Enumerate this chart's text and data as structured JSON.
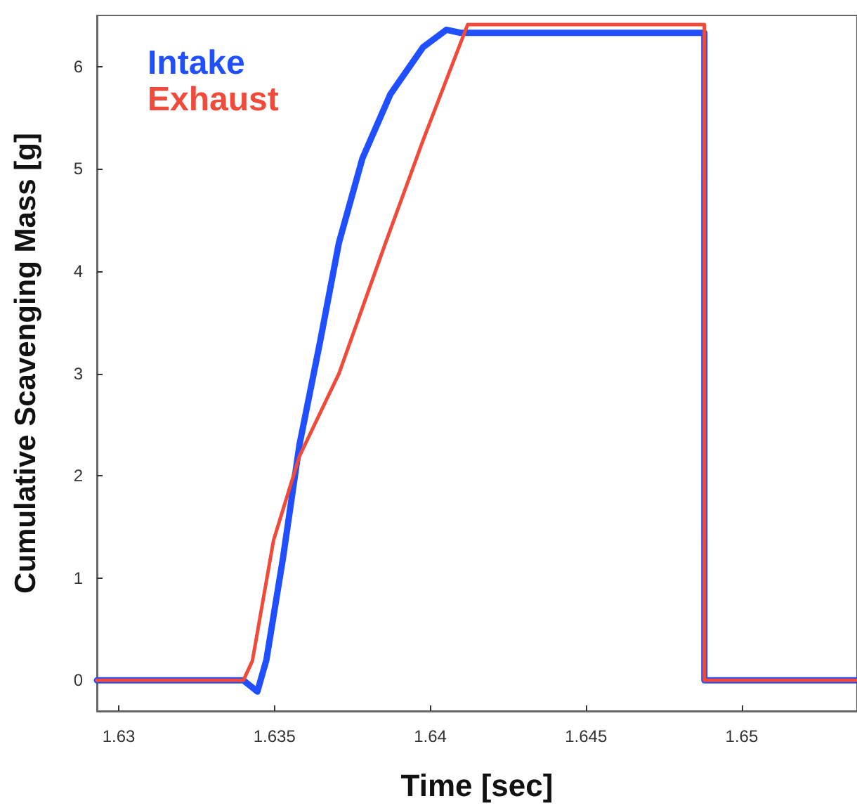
{
  "chart_data": {
    "type": "line",
    "xlabel": "Time [sec]",
    "ylabel": "Cumulative Scavenging Mass [g]",
    "xlim": [
      1.6293,
      1.6537
    ],
    "xticks": [
      1.63,
      1.635,
      1.64,
      1.645,
      1.65
    ],
    "ylim": [
      -0.3,
      6.5
    ],
    "yticks": [
      0,
      1,
      2,
      3,
      4,
      5,
      6
    ],
    "grid": false,
    "legend": "top left",
    "marker": "none",
    "line_style": "solid",
    "series": [
      {
        "name": "Intake",
        "color": "#1f4fff",
        "x": [
          1.6293,
          1.634,
          1.63445,
          1.63474,
          1.63527,
          1.6358,
          1.63647,
          1.63707,
          1.63782,
          1.63872,
          1.63977,
          1.64052,
          1.64097,
          1.6488,
          1.6488,
          1.6537
        ],
        "values": [
          0,
          0,
          -0.11,
          0.2,
          1.19,
          2.3,
          3.32,
          4.28,
          5.1,
          5.73,
          6.19,
          6.36,
          6.33,
          6.33,
          0,
          0
        ]
      },
      {
        "name": "Exhaust",
        "color": "#f04a3a",
        "x": [
          1.6293,
          1.634,
          1.63429,
          1.63497,
          1.6358,
          1.63707,
          1.63857,
          1.63977,
          1.64068,
          1.6412,
          1.6488,
          1.6488,
          1.6537
        ],
        "values": [
          0,
          0,
          0.19,
          1.37,
          2.19,
          3.0,
          4.28,
          5.28,
          6.0,
          6.41,
          6.41,
          0,
          0
        ]
      }
    ]
  }
}
